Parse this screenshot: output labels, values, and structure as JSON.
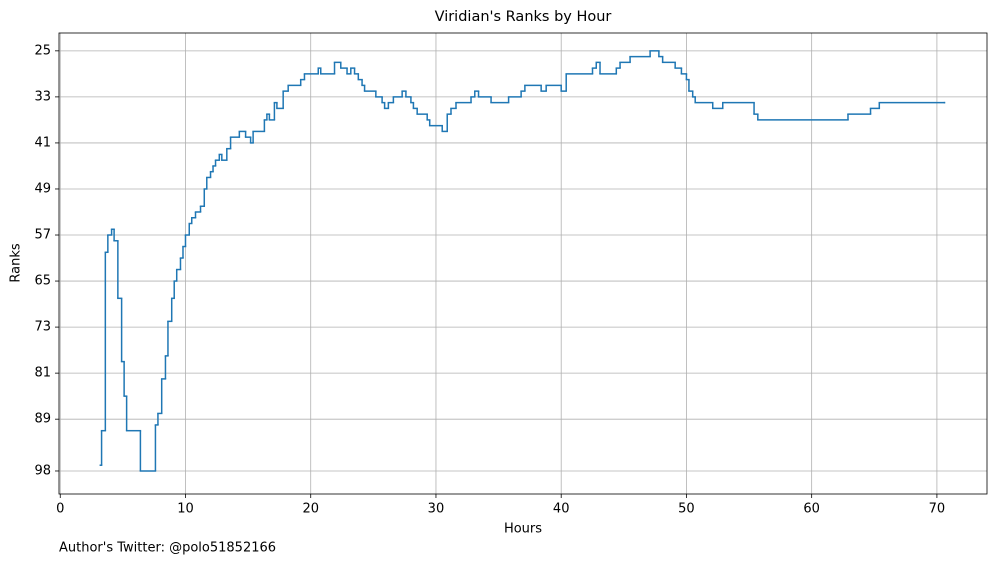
{
  "chart_data": {
    "type": "step",
    "title": "Viridian's Ranks by Hour",
    "xlabel": "Hours",
    "ylabel": "Ranks",
    "footer": "Author's Twitter: @polo51852166",
    "xlim": [
      -0.1,
      74
    ],
    "xticks": [
      0,
      10,
      20,
      30,
      40,
      50,
      60,
      70
    ],
    "ylim": [
      21.9,
      102
    ],
    "y_inverted": true,
    "yticks": [
      25,
      33,
      41,
      49,
      57,
      65,
      73,
      81,
      89,
      98
    ],
    "grid": true,
    "series": [
      {
        "color": "#1f77b4",
        "x": [
          3.2,
          3.3,
          3.6,
          3.8,
          4.1,
          4.3,
          4.6,
          4.9,
          5.1,
          5.3,
          6.4,
          7.6,
          7.8,
          8.1,
          8.4,
          8.6,
          8.9,
          9.1,
          9.3,
          9.6,
          9.8,
          10.0,
          10.3,
          10.5,
          10.8,
          11.2,
          11.5,
          11.7,
          12.0,
          12.2,
          12.4,
          12.7,
          12.9,
          13.3,
          13.6,
          14.3,
          14.8,
          15.2,
          15.4,
          16.3,
          16.5,
          16.7,
          17.1,
          17.3,
          17.8,
          18.2,
          19.2,
          19.5,
          20.6,
          20.8,
          21.9,
          22.4,
          22.9,
          23.2,
          23.5,
          23.8,
          24.1,
          24.3,
          25.2,
          25.7,
          25.9,
          26.2,
          26.6,
          27.3,
          27.6,
          28.0,
          28.2,
          28.5,
          29.3,
          29.5,
          30.5,
          30.9,
          31.2,
          31.6,
          32.8,
          33.1,
          33.4,
          34.4,
          35.8,
          36.8,
          37.1,
          38.4,
          38.8,
          40.0,
          40.4,
          42.5,
          42.8,
          43.1,
          44.4,
          44.7,
          45.5,
          47.1,
          47.8,
          48.1,
          49.1,
          49.6,
          50.0,
          50.2,
          50.5,
          50.7,
          52.1,
          52.9,
          55.4,
          55.7,
          62.9,
          64.7,
          65.4,
          70.6
        ],
        "values": [
          97,
          91,
          60,
          57,
          56,
          58,
          68,
          79,
          85,
          91,
          98,
          90,
          88,
          82,
          78,
          72,
          68,
          65,
          63,
          61,
          59,
          57,
          55,
          54,
          53,
          52,
          49,
          47,
          46,
          45,
          44,
          43,
          44,
          42,
          40,
          39,
          40,
          41,
          39,
          37,
          36,
          37,
          34,
          35,
          32,
          31,
          30,
          29,
          28,
          29,
          27,
          28,
          29,
          28,
          29,
          30,
          31,
          32,
          33,
          34,
          35,
          34,
          33,
          32,
          33,
          34,
          35,
          36,
          37,
          38,
          39,
          36,
          35,
          34,
          33,
          32,
          33,
          34,
          33,
          32,
          31,
          32,
          31,
          32,
          29,
          28,
          27,
          29,
          28,
          27,
          26,
          25,
          26,
          27,
          28,
          29,
          30,
          32,
          33,
          34,
          35,
          34,
          36,
          37,
          36,
          35,
          34,
          34
        ]
      }
    ]
  }
}
